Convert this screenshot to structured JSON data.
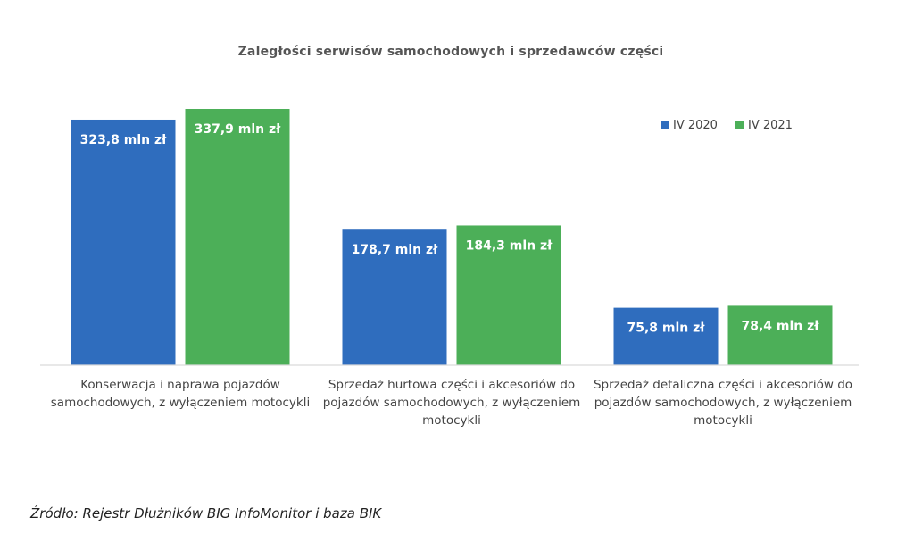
{
  "chart_data": {
    "type": "bar",
    "title": "Zaległości serwisów samochodowych i sprzedawców części",
    "categories": [
      [
        "Konserwacja i naprawa pojazdów",
        "samochodowych, z wyłączeniem motocykli"
      ],
      [
        "Sprzedaż hurtowa części i akcesoriów do",
        "pojazdów samochodowych, z wyłączeniem",
        "motocykli"
      ],
      [
        "Sprzedaż detaliczna części i akcesoriów do",
        "pojazdów samochodowych, z wyłączeniem",
        "motocykli"
      ]
    ],
    "series": [
      {
        "name": "IV 2020",
        "color": "#2F6DBE",
        "values": [
          323.8,
          178.7,
          75.8
        ],
        "labels": [
          "323,8 mln zł",
          "178,7 mln zł",
          "75,8 mln zł"
        ]
      },
      {
        "name": "IV 2021",
        "color": "#4CAF58",
        "values": [
          337.9,
          184.3,
          78.4
        ],
        "labels": [
          "337,9 mln zł",
          "184,3 mln zł",
          "78,4 mln zł"
        ]
      }
    ],
    "ylim": [
      0,
      337.9
    ],
    "grid": false,
    "legend": "top-right"
  },
  "source": "Źródło: Rejestr Dłużników BIG InfoMonitor i baza BIK"
}
